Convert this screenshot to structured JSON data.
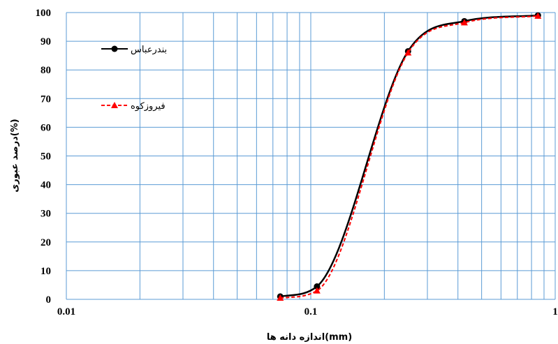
{
  "chart_data": {
    "type": "line",
    "x_scale": "log",
    "xlabel": "اندازه دانه ها(mm)",
    "ylabel": "درصد عبوری(%)",
    "xlim": [
      0.01,
      1
    ],
    "ylim": [
      0,
      100
    ],
    "x_ticks": [
      "0.01",
      "0.1",
      "1"
    ],
    "y_ticks": [
      "0",
      "10",
      "20",
      "30",
      "40",
      "50",
      "60",
      "70",
      "80",
      "90",
      "100"
    ],
    "grid": true,
    "legend_position": "left",
    "series": [
      {
        "name": "بندرعباس",
        "color": "#000000",
        "marker": "circle",
        "line_style": "solid",
        "x": [
          0.075,
          0.106,
          0.25,
          0.425,
          0.85
        ],
        "y": [
          1,
          4.5,
          86.5,
          97,
          99
        ]
      },
      {
        "name": "فیروزکوه",
        "color": "#ff0000",
        "marker": "triangle",
        "line_style": "dashed",
        "x": [
          0.075,
          0.106,
          0.25,
          0.425,
          0.85
        ],
        "y": [
          0.5,
          3,
          86,
          96.5,
          98.8
        ]
      }
    ]
  }
}
